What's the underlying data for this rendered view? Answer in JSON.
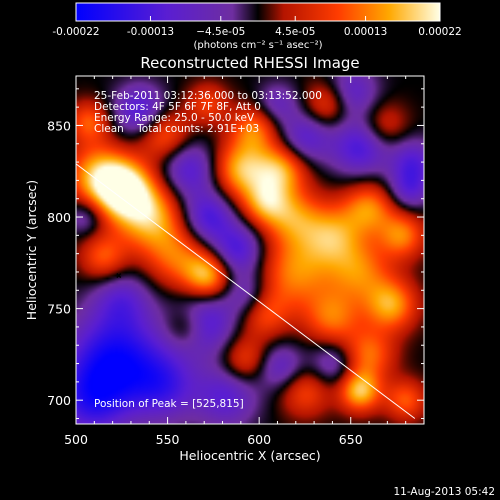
{
  "chart_data": {
    "type": "heatmap",
    "title": "Reconstructed RHESSI Image",
    "xlabel": "Heliocentric X (arcsec)",
    "ylabel": "Heliocentric Y (arcsec)",
    "xlim": [
      500,
      690
    ],
    "ylim": [
      687,
      877
    ],
    "x_ticks": [
      500,
      550,
      600,
      650
    ],
    "y_ticks": [
      700,
      750,
      800,
      850
    ],
    "colorbar": {
      "min": -0.00022,
      "max": 0.00022,
      "tick_values": [
        -0.00022,
        -0.00013,
        -4.5e-05,
        4.5e-05,
        0.00013,
        0.00022
      ],
      "tick_labels": [
        "-0.00022",
        "-0.00013",
        "−4.5e-05",
        "4.5e-05",
        "0.00013",
        "0.00022"
      ],
      "unit_label": "(photons cm⁻² s⁻¹ asec⁻²)"
    },
    "info_lines": [
      "25-Feb-2011 03:12:36.000 to 03:13:52.000",
      "Detectors: 4F 5F 6F 7F 8F, Att 0",
      "Energy Range: 25.0 - 50.0 keV",
      "Clean    Total counts: 2.91E+03"
    ],
    "peak_label": "Position of Peak = [525,815]",
    "peak": [
      525,
      815
    ],
    "limb_line": [
      [
        500,
        829
      ],
      [
        685,
        690
      ]
    ],
    "blobs": [
      {
        "x": 526,
        "y": 815,
        "v": 1.0,
        "s": 11
      },
      {
        "x": 512,
        "y": 823,
        "v": 0.7,
        "s": 12
      },
      {
        "x": 540,
        "y": 800,
        "v": 0.75,
        "s": 13
      },
      {
        "x": 555,
        "y": 778,
        "v": 0.5,
        "s": 12
      },
      {
        "x": 572,
        "y": 768,
        "v": 0.75,
        "s": 9
      },
      {
        "x": 548,
        "y": 845,
        "v": 0.55,
        "s": 10
      },
      {
        "x": 507,
        "y": 852,
        "v": 0.5,
        "s": 8
      },
      {
        "x": 515,
        "y": 778,
        "v": 0.5,
        "s": 9
      },
      {
        "x": 590,
        "y": 826,
        "v": 0.75,
        "s": 11
      },
      {
        "x": 612,
        "y": 826,
        "v": 0.7,
        "s": 10
      },
      {
        "x": 603,
        "y": 808,
        "v": 0.6,
        "s": 9
      },
      {
        "x": 597,
        "y": 848,
        "v": 0.55,
        "s": 9
      },
      {
        "x": 618,
        "y": 800,
        "v": 0.55,
        "s": 11
      },
      {
        "x": 640,
        "y": 790,
        "v": 0.65,
        "s": 12
      },
      {
        "x": 660,
        "y": 805,
        "v": 0.6,
        "s": 10
      },
      {
        "x": 678,
        "y": 790,
        "v": 0.6,
        "s": 9
      },
      {
        "x": 655,
        "y": 770,
        "v": 0.55,
        "s": 12
      },
      {
        "x": 620,
        "y": 770,
        "v": 0.6,
        "s": 14
      },
      {
        "x": 602,
        "y": 748,
        "v": 0.5,
        "s": 10
      },
      {
        "x": 640,
        "y": 745,
        "v": 0.55,
        "s": 11
      },
      {
        "x": 672,
        "y": 752,
        "v": 0.7,
        "s": 10
      },
      {
        "x": 660,
        "y": 725,
        "v": 0.55,
        "s": 10
      },
      {
        "x": 655,
        "y": 705,
        "v": 0.8,
        "s": 8
      },
      {
        "x": 680,
        "y": 700,
        "v": 0.5,
        "s": 8
      },
      {
        "x": 625,
        "y": 705,
        "v": 0.45,
        "s": 10
      },
      {
        "x": 592,
        "y": 722,
        "v": 0.45,
        "s": 9
      },
      {
        "x": 560,
        "y": 740,
        "v": 0.4,
        "s": 8
      },
      {
        "x": 638,
        "y": 862,
        "v": 0.5,
        "s": 9
      },
      {
        "x": 668,
        "y": 850,
        "v": 0.35,
        "s": 9
      },
      {
        "x": 572,
        "y": 862,
        "v": 0.4,
        "s": 8
      },
      {
        "x": 522,
        "y": 722,
        "v": -0.9,
        "s": 18
      },
      {
        "x": 508,
        "y": 700,
        "v": -0.6,
        "s": 14
      },
      {
        "x": 548,
        "y": 708,
        "v": -0.55,
        "s": 13
      },
      {
        "x": 525,
        "y": 755,
        "v": -0.4,
        "s": 11
      },
      {
        "x": 535,
        "y": 858,
        "v": -0.6,
        "s": 10
      },
      {
        "x": 562,
        "y": 826,
        "v": -0.55,
        "s": 11
      },
      {
        "x": 572,
        "y": 800,
        "v": -0.6,
        "s": 10
      },
      {
        "x": 588,
        "y": 782,
        "v": -0.6,
        "s": 10
      },
      {
        "x": 570,
        "y": 742,
        "v": -0.6,
        "s": 12
      },
      {
        "x": 594,
        "y": 757,
        "v": -0.45,
        "s": 9
      },
      {
        "x": 582,
        "y": 702,
        "v": -0.5,
        "s": 12
      },
      {
        "x": 612,
        "y": 718,
        "v": -0.45,
        "s": 9
      },
      {
        "x": 625,
        "y": 843,
        "v": -0.5,
        "s": 10
      },
      {
        "x": 655,
        "y": 838,
        "v": -0.6,
        "s": 11
      },
      {
        "x": 650,
        "y": 868,
        "v": -0.5,
        "s": 10
      },
      {
        "x": 684,
        "y": 830,
        "v": -0.5,
        "s": 9
      },
      {
        "x": 682,
        "y": 815,
        "v": -0.45,
        "s": 8
      },
      {
        "x": 640,
        "y": 720,
        "v": -0.4,
        "s": 9
      },
      {
        "x": 505,
        "y": 800,
        "v": -0.35,
        "s": 7
      },
      {
        "x": 610,
        "y": 862,
        "v": -0.35,
        "s": 8
      }
    ]
  },
  "footer": {
    "timestamp": "11-Aug-2013 05:42"
  }
}
